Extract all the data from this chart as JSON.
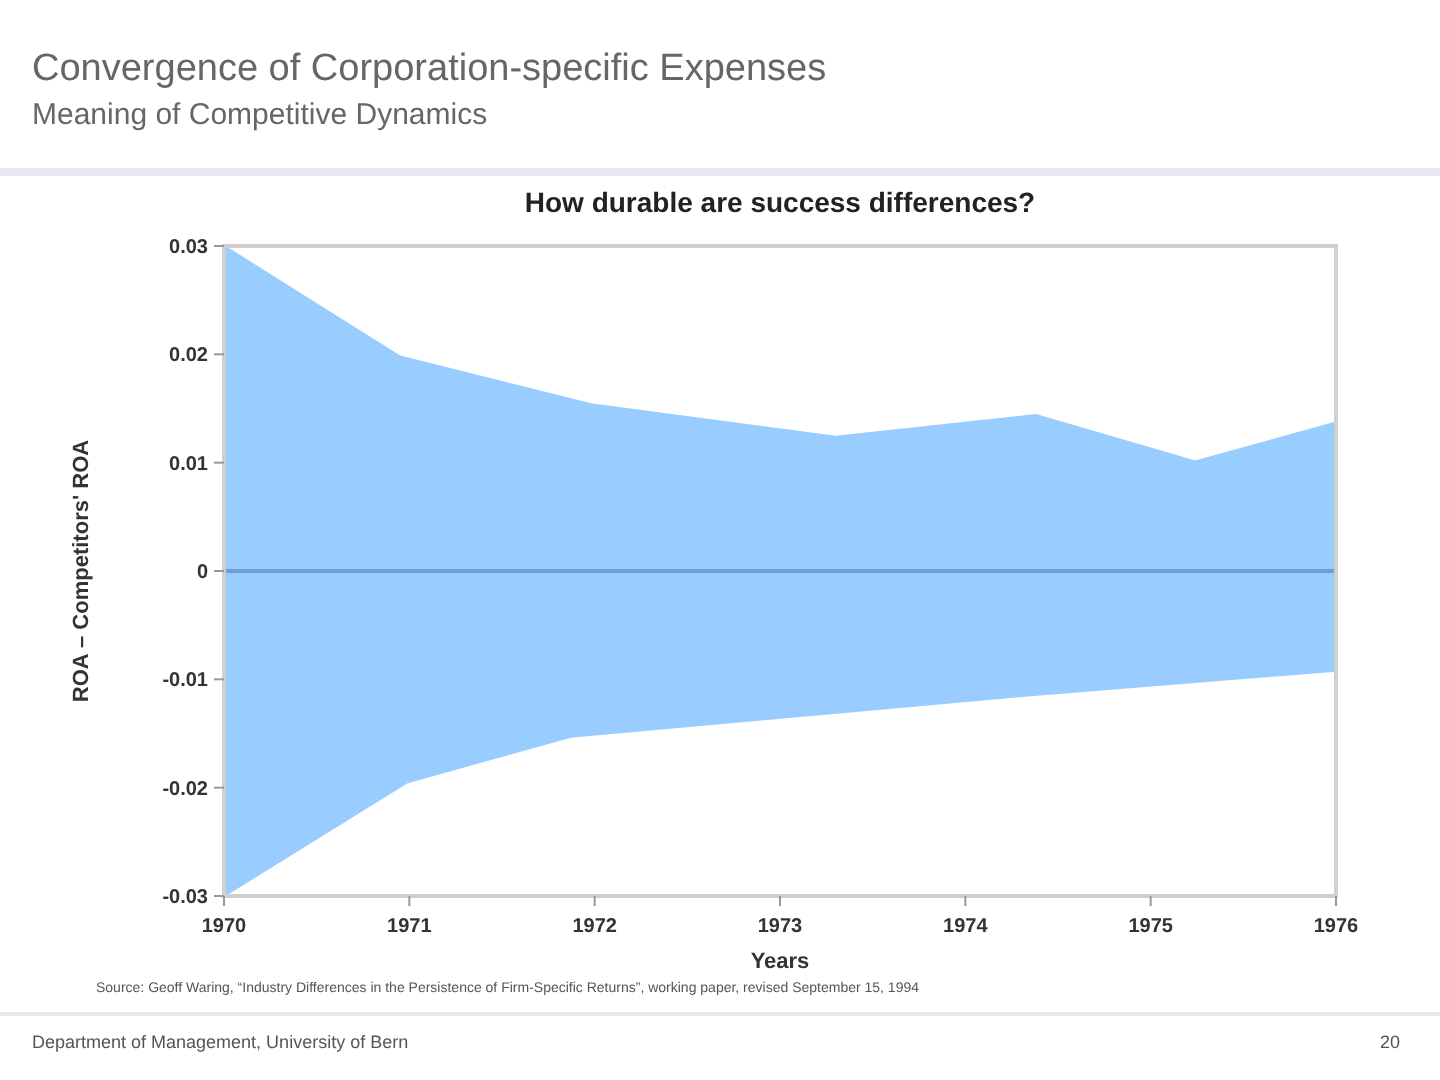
{
  "chart_data": {
    "type": "area",
    "title": "How durable are success differences?",
    "xlabel": "Years",
    "ylabel": "ROA – Competitors' ROA",
    "annotations": [
      "Convergence of Corporation-specific Expenses",
      "Meaning of Competitive Dynamics",
      "Source: Geoff Waring, “Industry Differences in the Persistence of Firm-Specific Returns”, working paper, revised September 15, 1994",
      "Department of Management, University of Bern",
      "20"
    ],
    "xlim": [
      1970,
      1976
    ],
    "xticks": [
      1970,
      1971,
      1972,
      1973,
      1974,
      1975,
      1976
    ],
    "ylim": [
      -0.03,
      0.03
    ],
    "yticks": [
      {
        "value": -0.03,
        "label": "-0.03"
      },
      {
        "value": -0.02,
        "label": "-0.02"
      },
      {
        "value": -0.01,
        "label": "-0.01"
      },
      0,
      {
        "value": 0.01,
        "label": "0.01"
      },
      {
        "value": 0.02,
        "label": "0.02"
      },
      {
        "value": 0.03,
        "label": "0.03"
      }
    ],
    "series": [
      {
        "color": "#99ccff",
        "x": [
          1970,
          1970.95,
          1971.98,
          1973.3,
          1974.38,
          1975.24,
          1976
        ],
        "values": [
          0.03,
          0.0198,
          0.0154,
          0.0124,
          0.0144,
          0.0101,
          0.0137
        ]
      },
      {
        "color": "#99ccff",
        "x": [
          1970,
          1970.99,
          1971.87,
          1974.26,
          1976
        ],
        "values": [
          -0.03,
          -0.0195,
          -0.0153,
          -0.0116,
          -0.0092
        ]
      }
    ],
    "ref_lines": [
      {
        "axis": "y",
        "value": 0,
        "color": "#6f9fd0"
      }
    ],
    "grid": false
  }
}
